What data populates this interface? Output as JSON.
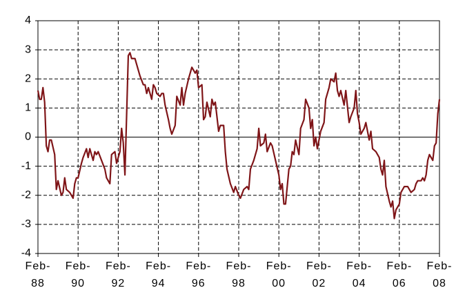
{
  "chart_data": {
    "type": "line",
    "x": [
      0,
      1,
      2,
      3,
      4,
      5,
      6,
      7,
      8,
      10,
      11,
      12,
      14,
      15,
      16,
      17,
      19,
      21,
      22,
      23,
      24,
      26,
      27,
      29,
      30,
      31,
      33,
      34,
      35,
      36,
      38,
      40,
      41,
      43,
      44,
      46,
      47,
      49,
      50,
      51,
      52,
      54,
      55,
      56,
      58,
      59,
      61,
      63,
      64,
      65,
      66,
      68,
      69,
      70,
      71,
      73,
      74,
      75,
      76,
      78,
      79,
      80,
      82,
      83,
      85,
      86,
      87,
      88,
      90,
      91,
      92,
      94,
      95,
      96,
      98,
      99,
      100,
      101,
      103,
      104,
      105,
      106,
      108,
      109,
      111,
      112,
      113,
      115,
      117,
      118,
      120,
      121,
      123,
      125,
      126,
      127,
      129,
      131,
      132,
      133,
      135,
      136,
      137,
      139,
      140,
      142,
      144,
      145,
      146,
      147,
      148,
      150,
      151,
      152,
      153,
      154,
      156,
      157,
      159,
      160,
      162,
      163,
      164,
      165,
      166,
      167,
      169,
      171,
      172,
      174,
      175,
      177,
      178,
      179,
      180,
      181,
      183,
      184,
      186,
      187,
      189,
      190,
      191,
      192,
      193,
      195,
      196,
      198,
      199,
      200,
      202,
      204,
      205,
      206,
      207,
      208,
      210,
      211,
      212,
      213,
      214,
      216,
      217,
      219,
      220,
      221,
      223,
      225,
      226,
      227,
      229,
      230,
      231,
      232,
      233,
      234,
      236,
      237,
      238,
      239,
      240
    ],
    "series": [
      {
        "color": "#7f1518",
        "values": [
          1.6,
          1.3,
          1.3,
          1.7,
          1.2,
          -0.3,
          -0.5,
          -0.1,
          -0.1,
          -0.6,
          -1.8,
          -1.5,
          -2.0,
          -1.9,
          -1.4,
          -1.8,
          -1.9,
          -2.1,
          -1.6,
          -1.4,
          -1.4,
          -0.9,
          -0.7,
          -0.4,
          -0.7,
          -0.4,
          -0.8,
          -0.5,
          -0.6,
          -0.5,
          -0.8,
          -1.1,
          -1.4,
          -1.6,
          -0.6,
          -0.5,
          -0.9,
          -0.5,
          0.3,
          -0.2,
          -1.3,
          2.8,
          2.9,
          2.7,
          2.7,
          2.5,
          2.1,
          1.8,
          1.8,
          1.5,
          1.7,
          1.3,
          1.8,
          1.7,
          1.5,
          1.4,
          1.5,
          1.5,
          1.1,
          0.6,
          0.3,
          0.1,
          0.4,
          1.4,
          1.1,
          1.7,
          1.1,
          1.5,
          2.0,
          2.2,
          2.4,
          2.2,
          2.3,
          1.7,
          1.8,
          0.6,
          0.7,
          1.2,
          0.7,
          1.3,
          1.1,
          1.2,
          0.2,
          0.4,
          0.4,
          -0.5,
          -1.1,
          -1.6,
          -1.9,
          -1.7,
          -2.0,
          -2.1,
          -1.8,
          -1.7,
          -1.8,
          -1.1,
          -0.8,
          -0.4,
          0.3,
          -0.3,
          -0.2,
          0.1,
          -0.5,
          -0.2,
          -0.3,
          -0.8,
          -1.3,
          -1.8,
          -1.6,
          -2.3,
          -2.3,
          -1.1,
          -1.0,
          -0.5,
          -0.6,
          -0.1,
          -0.6,
          0.3,
          0.6,
          1.3,
          1.0,
          0.3,
          0.6,
          -0.3,
          0.0,
          -0.4,
          0.2,
          0.5,
          1.3,
          1.7,
          2.0,
          1.9,
          2.2,
          1.6,
          1.4,
          1.6,
          1.1,
          1.6,
          0.5,
          0.7,
          1.0,
          1.6,
          0.8,
          0.5,
          0.1,
          0.3,
          0.5,
          -0.1,
          0.2,
          -0.4,
          -0.5,
          -0.7,
          -1.1,
          -1.3,
          -0.8,
          -1.7,
          -2.2,
          -2.4,
          -2.2,
          -2.8,
          -2.5,
          -2.3,
          -1.9,
          -1.7,
          -1.7,
          -1.7,
          -1.9,
          -1.8,
          -1.6,
          -1.5,
          -1.5,
          -1.4,
          -1.5,
          -1.3,
          -0.8,
          -0.6,
          -0.8,
          -0.3,
          -0.2,
          0.8,
          1.3
        ]
      }
    ],
    "xlim": [
      0,
      240
    ],
    "xticks": [
      {
        "value": 0,
        "label": "Feb-88"
      },
      {
        "value": 24,
        "label": "Feb-90"
      },
      {
        "value": 48,
        "label": "Feb-92"
      },
      {
        "value": 72,
        "label": "Feb-94"
      },
      {
        "value": 96,
        "label": "Feb-96"
      },
      {
        "value": 120,
        "label": "Feb-98"
      },
      {
        "value": 144,
        "label": "Feb-00"
      },
      {
        "value": 168,
        "label": "Feb-02"
      },
      {
        "value": 192,
        "label": "Feb-04"
      },
      {
        "value": 216,
        "label": "Feb-06"
      },
      {
        "value": 240,
        "label": "Feb-08"
      }
    ],
    "ylim": [
      -4,
      4
    ],
    "yticks": [
      -4,
      -3,
      -2,
      -1,
      0,
      1,
      2,
      3,
      4
    ],
    "grid": true
  }
}
